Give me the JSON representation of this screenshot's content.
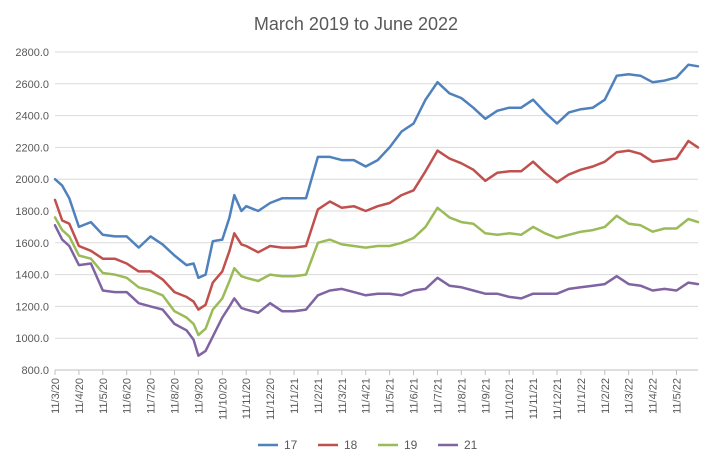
{
  "chart_data": {
    "type": "line",
    "title": "March 2019 to June 2022",
    "xlabel": "",
    "ylabel": "",
    "ylim": [
      800,
      2800
    ],
    "yticks": [
      "2800.0",
      "2600.0",
      "2400.0",
      "2200.0",
      "2000.0",
      "1800.0",
      "1600.0",
      "1400.0",
      "1200.0",
      "1000.0",
      "800.0"
    ],
    "ytick_values": [
      2800,
      2600,
      2400,
      2200,
      2000,
      1800,
      1600,
      1400,
      1200,
      1000,
      800
    ],
    "categories": [
      "11/3/20",
      "11/4/20",
      "11/5/20",
      "11/6/20",
      "11/7/20",
      "11/8/20",
      "11/9/20",
      "11/10/20",
      "11/11/20",
      "11/12/20",
      "11/1/21",
      "11/2/21",
      "11/3/21",
      "11/4/21",
      "11/5/21",
      "11/6/21",
      "11/7/21",
      "11/8/21",
      "11/9/21",
      "11/10/21",
      "11/11/21",
      "11/12/21",
      "11/1/22",
      "11/2/22",
      "11/3/22",
      "11/4/22",
      "11/5/22"
    ],
    "x_end": 26.9,
    "grid": true,
    "legend_position": "bottom",
    "series": [
      {
        "name": "17",
        "color": "#4f81bd",
        "points": [
          [
            0,
            2000
          ],
          [
            0.3,
            1960
          ],
          [
            0.6,
            1880
          ],
          [
            1,
            1700
          ],
          [
            1.5,
            1730
          ],
          [
            2,
            1650
          ],
          [
            2.5,
            1640
          ],
          [
            3,
            1640
          ],
          [
            3.5,
            1570
          ],
          [
            4,
            1640
          ],
          [
            4.5,
            1590
          ],
          [
            5,
            1520
          ],
          [
            5.5,
            1460
          ],
          [
            5.8,
            1470
          ],
          [
            6,
            1380
          ],
          [
            6.3,
            1400
          ],
          [
            6.6,
            1610
          ],
          [
            7,
            1620
          ],
          [
            7.3,
            1760
          ],
          [
            7.5,
            1900
          ],
          [
            7.8,
            1800
          ],
          [
            8,
            1830
          ],
          [
            8.5,
            1800
          ],
          [
            9,
            1850
          ],
          [
            9.5,
            1880
          ],
          [
            10,
            1880
          ],
          [
            10.5,
            1880
          ],
          [
            11,
            2140
          ],
          [
            11.5,
            2140
          ],
          [
            12,
            2120
          ],
          [
            12.5,
            2120
          ],
          [
            13,
            2080
          ],
          [
            13.5,
            2120
          ],
          [
            14,
            2200
          ],
          [
            14.5,
            2300
          ],
          [
            15,
            2350
          ],
          [
            15.5,
            2500
          ],
          [
            16,
            2610
          ],
          [
            16.5,
            2540
          ],
          [
            17,
            2510
          ],
          [
            17.5,
            2450
          ],
          [
            18,
            2380
          ],
          [
            18.5,
            2430
          ],
          [
            19,
            2450
          ],
          [
            19.5,
            2450
          ],
          [
            20,
            2500
          ],
          [
            20.5,
            2420
          ],
          [
            21,
            2350
          ],
          [
            21.5,
            2420
          ],
          [
            22,
            2440
          ],
          [
            22.5,
            2450
          ],
          [
            23,
            2500
          ],
          [
            23.5,
            2650
          ],
          [
            24,
            2660
          ],
          [
            24.5,
            2650
          ],
          [
            25,
            2610
          ],
          [
            25.5,
            2620
          ],
          [
            26,
            2640
          ],
          [
            26.5,
            2720
          ],
          [
            26.9,
            2710
          ]
        ]
      },
      {
        "name": "18",
        "color": "#c0504d",
        "points": [
          [
            0,
            1870
          ],
          [
            0.3,
            1740
          ],
          [
            0.6,
            1720
          ],
          [
            1,
            1580
          ],
          [
            1.5,
            1550
          ],
          [
            2,
            1500
          ],
          [
            2.5,
            1500
          ],
          [
            3,
            1470
          ],
          [
            3.5,
            1420
          ],
          [
            4,
            1420
          ],
          [
            4.5,
            1370
          ],
          [
            5,
            1290
          ],
          [
            5.5,
            1260
          ],
          [
            5.8,
            1230
          ],
          [
            6,
            1180
          ],
          [
            6.3,
            1210
          ],
          [
            6.6,
            1350
          ],
          [
            7,
            1420
          ],
          [
            7.3,
            1550
          ],
          [
            7.5,
            1660
          ],
          [
            7.8,
            1590
          ],
          [
            8,
            1580
          ],
          [
            8.5,
            1540
          ],
          [
            9,
            1580
          ],
          [
            9.5,
            1570
          ],
          [
            10,
            1570
          ],
          [
            10.5,
            1580
          ],
          [
            11,
            1810
          ],
          [
            11.5,
            1860
          ],
          [
            12,
            1820
          ],
          [
            12.5,
            1830
          ],
          [
            13,
            1800
          ],
          [
            13.5,
            1830
          ],
          [
            14,
            1850
          ],
          [
            14.5,
            1900
          ],
          [
            15,
            1930
          ],
          [
            15.5,
            2050
          ],
          [
            16,
            2180
          ],
          [
            16.5,
            2130
          ],
          [
            17,
            2100
          ],
          [
            17.5,
            2060
          ],
          [
            18,
            1990
          ],
          [
            18.5,
            2040
          ],
          [
            19,
            2050
          ],
          [
            19.5,
            2050
          ],
          [
            20,
            2110
          ],
          [
            20.5,
            2040
          ],
          [
            21,
            1980
          ],
          [
            21.5,
            2030
          ],
          [
            22,
            2060
          ],
          [
            22.5,
            2080
          ],
          [
            23,
            2110
          ],
          [
            23.5,
            2170
          ],
          [
            24,
            2180
          ],
          [
            24.5,
            2160
          ],
          [
            25,
            2110
          ],
          [
            25.5,
            2120
          ],
          [
            26,
            2130
          ],
          [
            26.5,
            2240
          ],
          [
            26.9,
            2200
          ]
        ]
      },
      {
        "name": "19",
        "color": "#9bbb59",
        "points": [
          [
            0,
            1760
          ],
          [
            0.3,
            1680
          ],
          [
            0.6,
            1640
          ],
          [
            1,
            1520
          ],
          [
            1.5,
            1500
          ],
          [
            2,
            1410
          ],
          [
            2.5,
            1400
          ],
          [
            3,
            1380
          ],
          [
            3.5,
            1320
          ],
          [
            4,
            1300
          ],
          [
            4.5,
            1270
          ],
          [
            5,
            1170
          ],
          [
            5.5,
            1130
          ],
          [
            5.8,
            1090
          ],
          [
            6,
            1020
          ],
          [
            6.3,
            1060
          ],
          [
            6.6,
            1180
          ],
          [
            7,
            1250
          ],
          [
            7.3,
            1360
          ],
          [
            7.5,
            1440
          ],
          [
            7.8,
            1390
          ],
          [
            8,
            1380
          ],
          [
            8.5,
            1360
          ],
          [
            9,
            1400
          ],
          [
            9.5,
            1390
          ],
          [
            10,
            1390
          ],
          [
            10.5,
            1400
          ],
          [
            11,
            1600
          ],
          [
            11.5,
            1620
          ],
          [
            12,
            1590
          ],
          [
            12.5,
            1580
          ],
          [
            13,
            1570
          ],
          [
            13.5,
            1580
          ],
          [
            14,
            1580
          ],
          [
            14.5,
            1600
          ],
          [
            15,
            1630
          ],
          [
            15.5,
            1700
          ],
          [
            16,
            1820
          ],
          [
            16.5,
            1760
          ],
          [
            17,
            1730
          ],
          [
            17.5,
            1720
          ],
          [
            18,
            1660
          ],
          [
            18.5,
            1650
          ],
          [
            19,
            1660
          ],
          [
            19.5,
            1650
          ],
          [
            20,
            1700
          ],
          [
            20.5,
            1660
          ],
          [
            21,
            1630
          ],
          [
            21.5,
            1650
          ],
          [
            22,
            1670
          ],
          [
            22.5,
            1680
          ],
          [
            23,
            1700
          ],
          [
            23.5,
            1770
          ],
          [
            24,
            1720
          ],
          [
            24.5,
            1710
          ],
          [
            25,
            1670
          ],
          [
            25.5,
            1690
          ],
          [
            26,
            1690
          ],
          [
            26.5,
            1750
          ],
          [
            26.9,
            1730
          ]
        ]
      },
      {
        "name": "21",
        "color": "#8064a2",
        "points": [
          [
            0,
            1710
          ],
          [
            0.3,
            1620
          ],
          [
            0.6,
            1580
          ],
          [
            1,
            1460
          ],
          [
            1.5,
            1470
          ],
          [
            2,
            1300
          ],
          [
            2.5,
            1290
          ],
          [
            3,
            1290
          ],
          [
            3.5,
            1220
          ],
          [
            4,
            1200
          ],
          [
            4.5,
            1180
          ],
          [
            5,
            1090
          ],
          [
            5.5,
            1050
          ],
          [
            5.8,
            990
          ],
          [
            6,
            890
          ],
          [
            6.3,
            920
          ],
          [
            6.6,
            1010
          ],
          [
            7,
            1130
          ],
          [
            7.3,
            1200
          ],
          [
            7.5,
            1250
          ],
          [
            7.8,
            1190
          ],
          [
            8,
            1180
          ],
          [
            8.5,
            1160
          ],
          [
            9,
            1220
          ],
          [
            9.5,
            1170
          ],
          [
            10,
            1170
          ],
          [
            10.5,
            1180
          ],
          [
            11,
            1270
          ],
          [
            11.5,
            1300
          ],
          [
            12,
            1310
          ],
          [
            12.5,
            1290
          ],
          [
            13,
            1270
          ],
          [
            13.5,
            1280
          ],
          [
            14,
            1280
          ],
          [
            14.5,
            1270
          ],
          [
            15,
            1300
          ],
          [
            15.5,
            1310
          ],
          [
            16,
            1380
          ],
          [
            16.5,
            1330
          ],
          [
            17,
            1320
          ],
          [
            17.5,
            1300
          ],
          [
            18,
            1280
          ],
          [
            18.5,
            1280
          ],
          [
            19,
            1260
          ],
          [
            19.5,
            1250
          ],
          [
            20,
            1280
          ],
          [
            20.5,
            1280
          ],
          [
            21,
            1280
          ],
          [
            21.5,
            1310
          ],
          [
            22,
            1320
          ],
          [
            22.5,
            1330
          ],
          [
            23,
            1340
          ],
          [
            23.5,
            1390
          ],
          [
            24,
            1340
          ],
          [
            24.5,
            1330
          ],
          [
            25,
            1300
          ],
          [
            25.5,
            1310
          ],
          [
            26,
            1300
          ],
          [
            26.5,
            1350
          ],
          [
            26.9,
            1340
          ]
        ]
      }
    ]
  }
}
